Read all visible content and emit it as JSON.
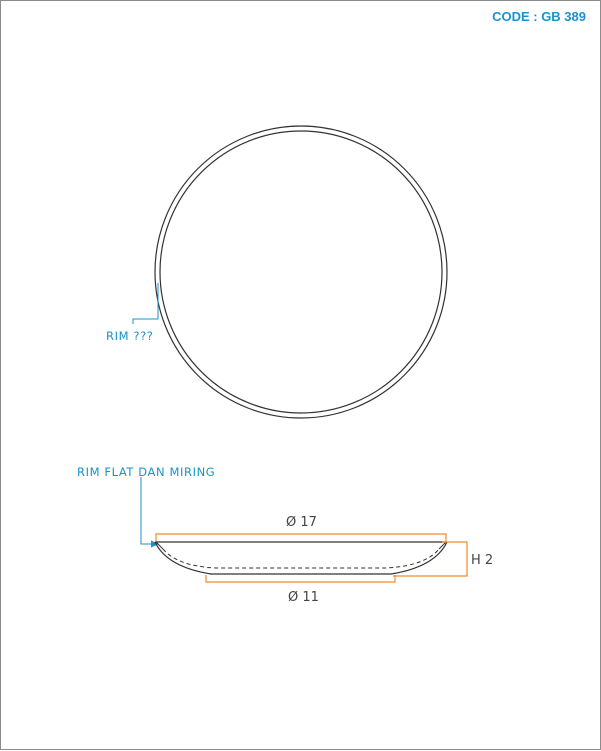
{
  "header": {
    "code": "CODE : GB 389"
  },
  "top_view": {
    "rim_label": "RIM ???"
  },
  "side_view": {
    "rim_label": "RIM FLAT DAN MIRING",
    "top_diameter": "Ø 17",
    "bottom_diameter": "Ø 11",
    "height": "H 2"
  },
  "colors": {
    "annotation": "#1a93c9",
    "dimension": "#f08c2a",
    "outline": "#333333"
  }
}
